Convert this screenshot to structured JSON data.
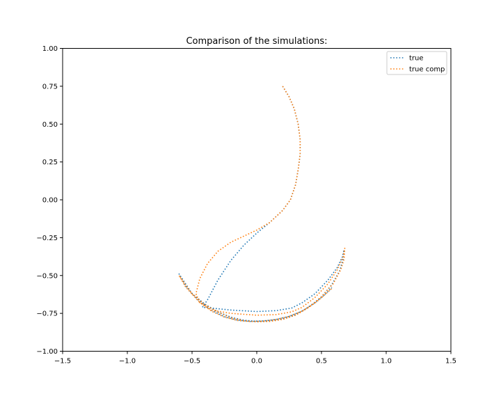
{
  "chart_data": {
    "type": "line",
    "title": "Comparison of the simulations:",
    "xlabel": "",
    "ylabel": "",
    "xlim": [
      -1.5,
      1.5
    ],
    "ylim": [
      -1.0,
      1.0
    ],
    "xticks": [
      "−1.5",
      "−1.0",
      "−0.5",
      "0.0",
      "0.5",
      "1.0",
      "1.5"
    ],
    "yticks": [
      "−1.00",
      "−0.75",
      "−0.50",
      "−0.25",
      "0.00",
      "0.25",
      "0.50",
      "0.75",
      "1.00"
    ],
    "grid": false,
    "legend_position": "top-right",
    "series": [
      {
        "name": "true",
        "color": "#1f77b4",
        "style": "dotted",
        "points": [
          [
            0.2,
            0.75
          ],
          [
            0.25,
            0.68
          ],
          [
            0.29,
            0.6
          ],
          [
            0.32,
            0.5
          ],
          [
            0.335,
            0.4
          ],
          [
            0.335,
            0.3
          ],
          [
            0.32,
            0.2
          ],
          [
            0.3,
            0.1
          ],
          [
            0.26,
            0.0
          ],
          [
            0.2,
            -0.07
          ],
          [
            0.1,
            -0.15
          ],
          [
            0.0,
            -0.22
          ],
          [
            -0.1,
            -0.3
          ],
          [
            -0.2,
            -0.4
          ],
          [
            -0.3,
            -0.53
          ],
          [
            -0.38,
            -0.66
          ],
          [
            -0.42,
            -0.71
          ],
          [
            -0.35,
            -0.715
          ],
          [
            -0.2,
            -0.728
          ],
          [
            0.0,
            -0.738
          ],
          [
            0.15,
            -0.732
          ],
          [
            0.27,
            -0.715
          ],
          [
            0.35,
            -0.68
          ],
          [
            0.45,
            -0.62
          ],
          [
            0.55,
            -0.53
          ],
          [
            0.62,
            -0.45
          ],
          [
            0.66,
            -0.38
          ],
          [
            0.675,
            -0.33
          ],
          [
            0.665,
            -0.4
          ],
          [
            0.64,
            -0.47
          ],
          [
            0.58,
            -0.56
          ],
          [
            0.5,
            -0.64
          ],
          [
            0.4,
            -0.71
          ],
          [
            0.3,
            -0.76
          ],
          [
            0.2,
            -0.787
          ],
          [
            0.1,
            -0.8
          ],
          [
            0.0,
            -0.803
          ],
          [
            -0.1,
            -0.795
          ],
          [
            -0.2,
            -0.775
          ],
          [
            -0.3,
            -0.74
          ],
          [
            -0.4,
            -0.69
          ],
          [
            -0.5,
            -0.62
          ],
          [
            -0.6,
            -0.49
          ],
          [
            -0.55,
            -0.57
          ],
          [
            -0.45,
            -0.665
          ],
          [
            -0.35,
            -0.73
          ],
          [
            -0.25,
            -0.772
          ],
          [
            -0.15,
            -0.795
          ],
          [
            -0.05,
            -0.803
          ],
          [
            0.05,
            -0.8
          ],
          [
            0.15,
            -0.79
          ],
          [
            0.25,
            -0.77
          ],
          [
            0.35,
            -0.735
          ],
          [
            0.45,
            -0.68
          ],
          [
            0.52,
            -0.63
          ],
          [
            0.58,
            -0.58
          ]
        ]
      },
      {
        "name": "true comp",
        "color": "#ff7f0e",
        "style": "dotted",
        "points": [
          [
            0.2,
            0.75
          ],
          [
            0.25,
            0.68
          ],
          [
            0.29,
            0.6
          ],
          [
            0.32,
            0.5
          ],
          [
            0.335,
            0.4
          ],
          [
            0.335,
            0.3
          ],
          [
            0.32,
            0.2
          ],
          [
            0.3,
            0.1
          ],
          [
            0.26,
            0.0
          ],
          [
            0.2,
            -0.07
          ],
          [
            0.1,
            -0.15
          ],
          [
            0.0,
            -0.2
          ],
          [
            -0.1,
            -0.24
          ],
          [
            -0.2,
            -0.28
          ],
          [
            -0.3,
            -0.34
          ],
          [
            -0.38,
            -0.42
          ],
          [
            -0.44,
            -0.52
          ],
          [
            -0.47,
            -0.62
          ],
          [
            -0.44,
            -0.68
          ],
          [
            -0.35,
            -0.728
          ],
          [
            -0.2,
            -0.75
          ],
          [
            0.0,
            -0.762
          ],
          [
            0.15,
            -0.758
          ],
          [
            0.27,
            -0.74
          ],
          [
            0.35,
            -0.71
          ],
          [
            0.45,
            -0.645
          ],
          [
            0.55,
            -0.555
          ],
          [
            0.62,
            -0.465
          ],
          [
            0.665,
            -0.38
          ],
          [
            0.68,
            -0.32
          ],
          [
            0.675,
            -0.39
          ],
          [
            0.65,
            -0.46
          ],
          [
            0.59,
            -0.555
          ],
          [
            0.5,
            -0.64
          ],
          [
            0.4,
            -0.712
          ],
          [
            0.3,
            -0.762
          ],
          [
            0.2,
            -0.79
          ],
          [
            0.1,
            -0.803
          ],
          [
            0.0,
            -0.806
          ],
          [
            -0.1,
            -0.798
          ],
          [
            -0.2,
            -0.778
          ],
          [
            -0.3,
            -0.742
          ],
          [
            -0.4,
            -0.692
          ],
          [
            -0.5,
            -0.62
          ],
          [
            -0.6,
            -0.5
          ],
          [
            -0.55,
            -0.575
          ],
          [
            -0.45,
            -0.67
          ],
          [
            -0.35,
            -0.735
          ],
          [
            -0.25,
            -0.775
          ],
          [
            -0.15,
            -0.797
          ],
          [
            -0.05,
            -0.804
          ],
          [
            0.05,
            -0.801
          ],
          [
            0.15,
            -0.79
          ],
          [
            0.25,
            -0.77
          ],
          [
            0.35,
            -0.735
          ],
          [
            0.45,
            -0.682
          ],
          [
            0.52,
            -0.632
          ],
          [
            0.58,
            -0.585
          ]
        ]
      }
    ]
  }
}
